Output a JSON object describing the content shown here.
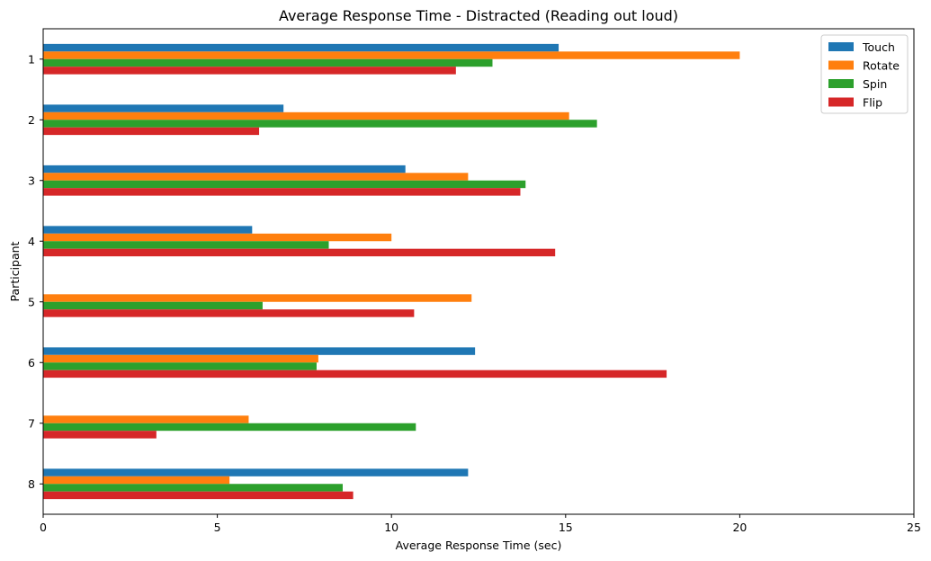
{
  "chart_data": {
    "type": "bar",
    "orientation": "horizontal",
    "title": "Average Response Time - Distracted (Reading out loud)",
    "xlabel": "Average Response Time (sec)",
    "ylabel": "Participant",
    "categories": [
      "1",
      "2",
      "3",
      "4",
      "5",
      "6",
      "7",
      "8"
    ],
    "xlim": [
      0,
      25
    ],
    "xticks": [
      "0",
      "5",
      "10",
      "15",
      "20",
      "25"
    ],
    "grid": false,
    "legend_position": "top-right",
    "series": [
      {
        "name": "Touch",
        "color": "#1f77b4",
        "values": [
          14.8,
          6.9,
          10.4,
          6.0,
          0,
          12.4,
          0,
          12.2
        ]
      },
      {
        "name": "Rotate",
        "color": "#ff7f0e",
        "values": [
          20.0,
          15.1,
          12.2,
          10.0,
          12.3,
          7.9,
          5.9,
          5.35
        ]
      },
      {
        "name": "Spin",
        "color": "#2ca02c",
        "values": [
          12.9,
          15.9,
          13.85,
          8.2,
          6.3,
          7.85,
          10.7,
          8.6
        ]
      },
      {
        "name": "Flip",
        "color": "#d62728",
        "values": [
          11.85,
          6.2,
          13.7,
          14.7,
          10.65,
          17.9,
          3.25,
          8.9
        ]
      }
    ]
  }
}
